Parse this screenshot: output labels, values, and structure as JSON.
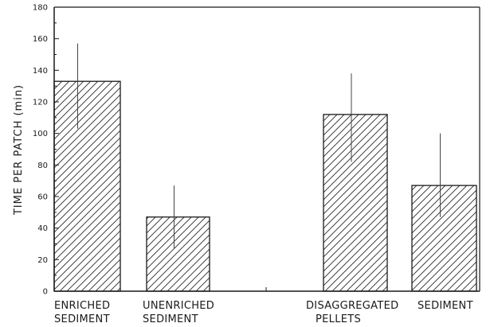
{
  "chart_data": {
    "type": "bar",
    "ylabel": "TIME PER PATCH (min)",
    "ylim": [
      0,
      180
    ],
    "yticks": [
      0,
      20,
      40,
      60,
      80,
      100,
      120,
      140,
      160,
      180
    ],
    "categories": [
      [
        "ENRICHED",
        "SEDIMENT"
      ],
      [
        "UNENRICHED",
        "SEDIMENT"
      ],
      [
        "DISAGGREGATED",
        "PELLETS"
      ],
      [
        "SEDIMENT"
      ]
    ],
    "values": [
      133,
      47,
      112,
      67
    ],
    "error_high": [
      157,
      67,
      138,
      100
    ],
    "error_low": [
      103,
      27,
      82,
      47
    ],
    "bar_fill": "diagonal-hatch",
    "colors": {
      "ink": "#1a1a1a",
      "background": "#ffffff"
    }
  }
}
